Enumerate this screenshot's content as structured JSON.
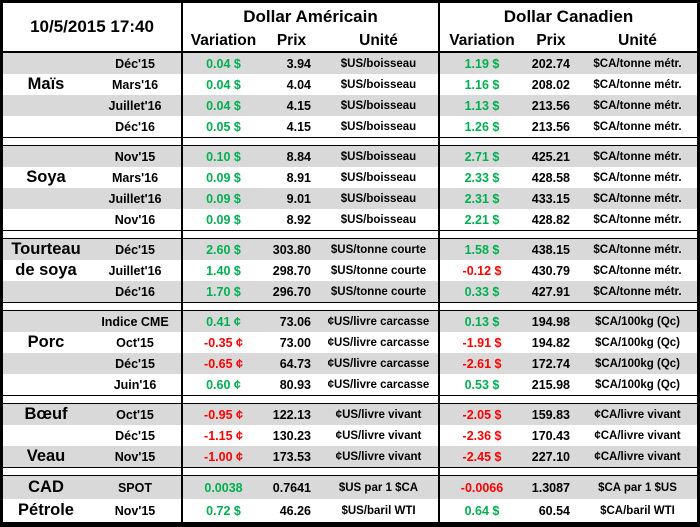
{
  "header": {
    "timestamp": "10/5/2015 17:40",
    "usd_title": "Dollar Américain",
    "cad_title": "Dollar Canadien",
    "columns": {
      "variation": "Variation",
      "prix": "Prix",
      "unite": "Unité"
    }
  },
  "colors": {
    "positive": "#00B050",
    "negative": "#FF0000",
    "row_shade": "#D9D9D9",
    "border": "#000000"
  },
  "sections": [
    {
      "rows": [
        {
          "category": "",
          "month": "Déc'15",
          "us": {
            "variation": "0.04 $",
            "prix": "3.94",
            "unite": "$US/boisseau"
          },
          "ca": {
            "variation": "1.19 $",
            "prix": "202.74",
            "unite": "$CA/tonne métr."
          }
        },
        {
          "category": "Maïs",
          "month": "Mars'16",
          "us": {
            "variation": "0.04 $",
            "prix": "4.04",
            "unite": "$US/boisseau"
          },
          "ca": {
            "variation": "1.16 $",
            "prix": "208.02",
            "unite": "$CA/tonne métr."
          }
        },
        {
          "category": "",
          "month": "Juillet'16",
          "us": {
            "variation": "0.04 $",
            "prix": "4.15",
            "unite": "$US/boisseau"
          },
          "ca": {
            "variation": "1.13 $",
            "prix": "213.56",
            "unite": "$CA/tonne métr."
          }
        },
        {
          "category": "",
          "month": "Déc'16",
          "us": {
            "variation": "0.05 $",
            "prix": "4.15",
            "unite": "$US/boisseau"
          },
          "ca": {
            "variation": "1.26 $",
            "prix": "213.56",
            "unite": "$CA/tonne métr."
          }
        }
      ]
    },
    {
      "rows": [
        {
          "category": "",
          "month": "Nov'15",
          "us": {
            "variation": "0.10 $",
            "prix": "8.84",
            "unite": "$US/boisseau"
          },
          "ca": {
            "variation": "2.71 $",
            "prix": "425.21",
            "unite": "$CA/tonne métr."
          }
        },
        {
          "category": "Soya",
          "month": "Mars'16",
          "us": {
            "variation": "0.09 $",
            "prix": "8.91",
            "unite": "$US/boisseau"
          },
          "ca": {
            "variation": "2.33 $",
            "prix": "428.58",
            "unite": "$CA/tonne métr."
          }
        },
        {
          "category": "",
          "month": "Juillet'16",
          "us": {
            "variation": "0.09 $",
            "prix": "9.01",
            "unite": "$US/boisseau"
          },
          "ca": {
            "variation": "2.31 $",
            "prix": "433.15",
            "unite": "$CA/tonne métr."
          }
        },
        {
          "category": "",
          "month": "Nov'16",
          "us": {
            "variation": "0.09 $",
            "prix": "8.92",
            "unite": "$US/boisseau"
          },
          "ca": {
            "variation": "2.21 $",
            "prix": "428.82",
            "unite": "$CA/tonne métr."
          }
        }
      ]
    },
    {
      "rows": [
        {
          "category": "Tourteau",
          "month": "Déc'15",
          "us": {
            "variation": "2.60 $",
            "prix": "303.80",
            "unite": "$US/tonne courte"
          },
          "ca": {
            "variation": "1.58 $",
            "prix": "438.15",
            "unite": "$CA/tonne métr."
          }
        },
        {
          "category": "de soya",
          "month": "Juillet'16",
          "us": {
            "variation": "1.40 $",
            "prix": "298.70",
            "unite": "$US/tonne courte"
          },
          "ca": {
            "variation": "-0.12 $",
            "prix": "430.79",
            "unite": "$CA/tonne métr."
          }
        },
        {
          "category": "",
          "month": "Déc'16",
          "us": {
            "variation": "1.70 $",
            "prix": "296.70",
            "unite": "$US/tonne courte"
          },
          "ca": {
            "variation": "0.33 $",
            "prix": "427.91",
            "unite": "$CA/tonne métr."
          }
        }
      ]
    },
    {
      "rows": [
        {
          "category": "",
          "month": "Indice CME",
          "us": {
            "variation": "0.41 ¢",
            "prix": "73.06",
            "unite": "¢US/livre carcasse"
          },
          "ca": {
            "variation": "0.13 $",
            "prix": "194.98",
            "unite": "$CA/100kg (Qc)"
          }
        },
        {
          "category": "Porc",
          "month": "Oct'15",
          "us": {
            "variation": "-0.35 ¢",
            "prix": "73.00",
            "unite": "¢US/livre carcasse"
          },
          "ca": {
            "variation": "-1.91 $",
            "prix": "194.82",
            "unite": "$CA/100kg (Qc)"
          }
        },
        {
          "category": "",
          "month": "Déc'15",
          "us": {
            "variation": "-0.65 ¢",
            "prix": "64.73",
            "unite": "¢US/livre carcasse"
          },
          "ca": {
            "variation": "-2.61 $",
            "prix": "172.74",
            "unite": "$CA/100kg (Qc)"
          }
        },
        {
          "category": "",
          "month": "Juin'16",
          "us": {
            "variation": "0.60 ¢",
            "prix": "80.93",
            "unite": "¢US/livre carcasse"
          },
          "ca": {
            "variation": "0.53 $",
            "prix": "215.98",
            "unite": "$CA/100kg (Qc)"
          }
        }
      ]
    },
    {
      "rows": [
        {
          "category": "Bœuf",
          "month": "Oct'15",
          "us": {
            "variation": "-0.95 ¢",
            "prix": "122.13",
            "unite": "¢US/livre vivant"
          },
          "ca": {
            "variation": "-2.05 $",
            "prix": "159.83",
            "unite": "¢CA/livre vivant"
          }
        },
        {
          "category": "",
          "month": "Déc'15",
          "us": {
            "variation": "-1.15 ¢",
            "prix": "130.23",
            "unite": "¢US/livre vivant"
          },
          "ca": {
            "variation": "-2.36 $",
            "prix": "170.43",
            "unite": "¢CA/livre vivant"
          }
        },
        {
          "category": "Veau",
          "month": "Nov'15",
          "us": {
            "variation": "-1.00 ¢",
            "prix": "173.53",
            "unite": "¢US/livre vivant"
          },
          "ca": {
            "variation": "-2.45 $",
            "prix": "227.10",
            "unite": "¢CA/livre vivant"
          }
        }
      ]
    },
    {
      "tall": true,
      "rows": [
        {
          "category": "CAD",
          "month": "SPOT",
          "us": {
            "variation": "0.0038",
            "prix": "0.7641",
            "unite": "$US par 1 $CA"
          },
          "ca": {
            "variation": "-0.0066",
            "prix": "1.3087",
            "unite": "$CA par 1 $US"
          }
        },
        {
          "category": "Pétrole",
          "month": "Nov'15",
          "us": {
            "variation": "0.72 $",
            "prix": "46.26",
            "unite": "$US/baril WTI"
          },
          "ca": {
            "variation": "0.64 $",
            "prix": "60.54",
            "unite": "$CA/baril WTI"
          }
        }
      ]
    }
  ]
}
